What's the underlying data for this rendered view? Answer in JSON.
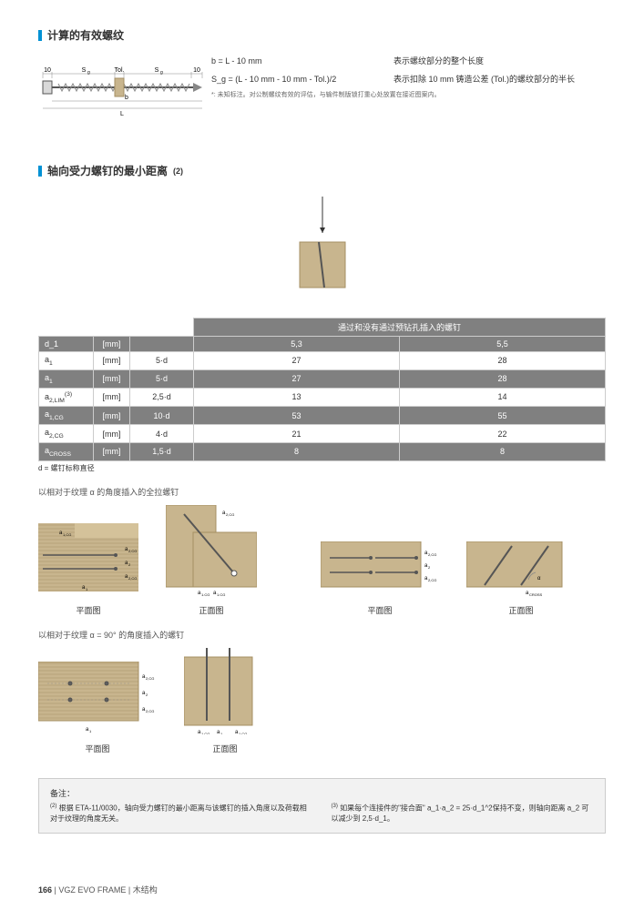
{
  "section1": {
    "title": "计算的有效螺纹",
    "diagram": {
      "top_labels": [
        "10",
        "S_g",
        "Tol.",
        "S_g",
        "10"
      ],
      "bottom_labels": [
        "b",
        "L"
      ],
      "head_color": "#d9d9d9",
      "thread_color": "#808080",
      "tol_block_color": "#c8b58e"
    },
    "formulas": [
      {
        "eq": "b   = L - 10 mm",
        "desc": "表示螺纹部分的整个长度"
      },
      {
        "eq": "S_g = (L - 10 mm - 10 mm - Tol.)/2",
        "desc": "表示扣除 10 mm 铸造公差 (Tol.)的螺纹部分的半长"
      }
    ],
    "footnote": "*: 未知标注。对公制螺纹有效的评估，与输件制版锁打重心处放置在接近图案内。"
  },
  "section2": {
    "title": "轴向受力螺钉的最小距离",
    "title_suffix": "(2)",
    "insert_diag": {
      "block_color": "#c8b58e",
      "line_color": "#333333"
    },
    "table": {
      "header_main": "通过和没有通过预钻孔插入的螺钉",
      "d_col": "d_1",
      "unit": "[mm]",
      "cols": [
        "5,3",
        "5,5"
      ],
      "rows": [
        {
          "label": "a_1",
          "mult": "5·d",
          "vals": [
            "27",
            "28"
          ],
          "shade": "light"
        },
        {
          "label": "a_1",
          "mult": "5·d",
          "vals": [
            "27",
            "28"
          ],
          "shade": "dark"
        },
        {
          "label": "a_2,LIM",
          "sup": "(3)",
          "mult": "2,5·d",
          "vals": [
            "13",
            "14"
          ],
          "shade": "light"
        },
        {
          "label": "a_1,CG",
          "mult": "10·d",
          "vals": [
            "53",
            "55"
          ],
          "shade": "dark"
        },
        {
          "label": "a_2,CG",
          "mult": "4·d",
          "vals": [
            "21",
            "22"
          ],
          "shade": "light"
        },
        {
          "label": "a_CROSS",
          "mult": "1,5·d",
          "vals": [
            "8",
            "8"
          ],
          "shade": "dark"
        }
      ],
      "foot": "d = 螺钉标称直径"
    },
    "sub1": "以相对于纹理 α 的角度插入的全拉螺钉",
    "sub2": "以相对于纹理 α = 90° 的角度插入的螺钉",
    "captions": {
      "plan": "平面图",
      "front": "正面图"
    },
    "figure_colors": {
      "wood_fill": "#c8b58e",
      "wood_stroke": "#a58f63",
      "screw_color": "#555555",
      "dim_color": "#888888"
    }
  },
  "notes": {
    "title": "备注：",
    "n2": "根据   ETA-11/0030，轴向受力螺钉的最小距离与该螺钉的插入角度以及荷载相对于纹理的角度无关。",
    "n3": "如果每个连接件的\"接合面\" a_1·a_2 = 25·d_1^2保持不变，则轴向距离 a_2 可以减少到 2,5·d_1。"
  },
  "footer": {
    "page": "166",
    "sep": " | ",
    "prod": "VGZ EVO FRAME",
    "cat": "木结构"
  }
}
